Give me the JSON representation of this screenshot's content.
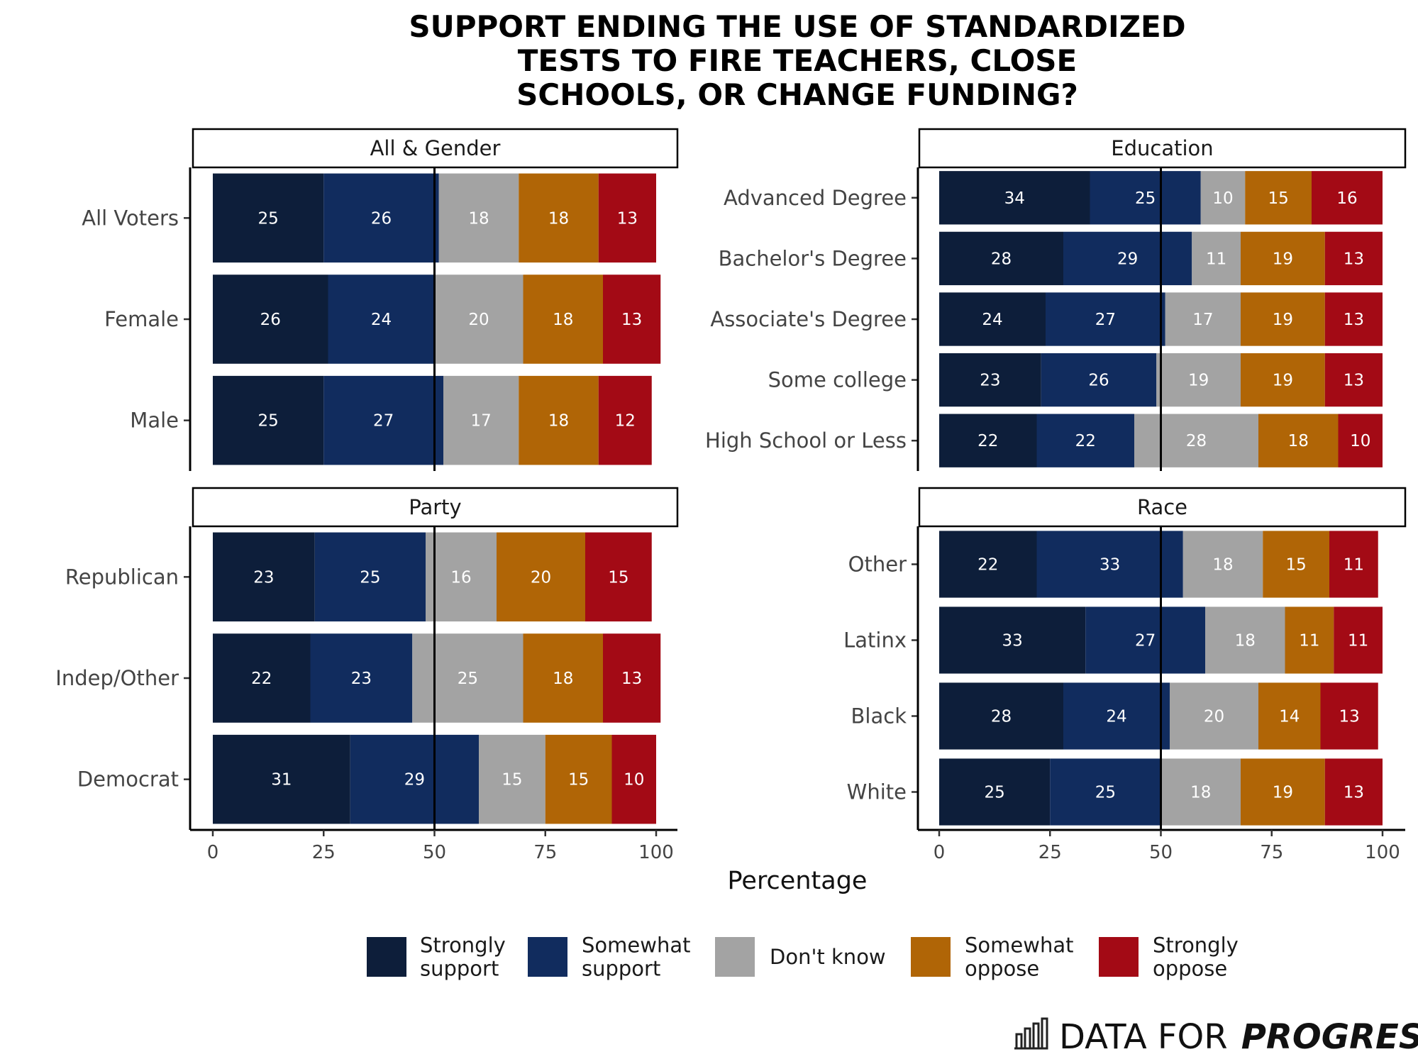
{
  "title_lines": [
    "SUPPORT ENDING THE USE OF STANDARDIZED",
    "TESTS TO FIRE TEACHERS, CLOSE",
    "SCHOOLS, OR CHANGE FUNDING?"
  ],
  "brand": {
    "light": "DATA FOR",
    "bold": "PROGRESS",
    "icon": "bar-chart-icon"
  },
  "chart_data": {
    "type": "bar",
    "orientation": "horizontal",
    "stacked": true,
    "xlabel": "Percentage",
    "xlim": [
      0,
      100
    ],
    "x_ticks": [
      0,
      25,
      50,
      75,
      100
    ],
    "reference_line": 50,
    "legend_placement": "bottom",
    "series": [
      {
        "name": "Strongly support",
        "lines": [
          "Strongly",
          "support"
        ],
        "color": "#0d1e3a"
      },
      {
        "name": "Somewhat support",
        "lines": [
          "Somewhat",
          "support"
        ],
        "color": "#112c5e"
      },
      {
        "name": "Don't know",
        "lines": [
          "Don't know"
        ],
        "color": "#a3a3a3"
      },
      {
        "name": "Somewhat oppose",
        "lines": [
          "Somewhat",
          "oppose"
        ],
        "color": "#b06506"
      },
      {
        "name": "Strongly oppose",
        "lines": [
          "Strongly",
          "oppose"
        ],
        "color": "#a30a15"
      }
    ],
    "panels": [
      {
        "title": "All & Gender",
        "categories": [
          "All Voters",
          "Female",
          "Male"
        ],
        "values": [
          [
            25,
            26,
            18,
            18,
            13
          ],
          [
            26,
            24,
            20,
            18,
            13
          ],
          [
            25,
            27,
            17,
            18,
            12
          ]
        ]
      },
      {
        "title": "Education",
        "categories": [
          "Advanced Degree",
          "Bachelor's Degree",
          "Associate's Degree",
          "Some college",
          "High School or Less"
        ],
        "values": [
          [
            34,
            25,
            10,
            15,
            16
          ],
          [
            28,
            29,
            11,
            19,
            13
          ],
          [
            24,
            27,
            17,
            19,
            13
          ],
          [
            23,
            26,
            19,
            19,
            13
          ],
          [
            22,
            22,
            28,
            18,
            10
          ]
        ]
      },
      {
        "title": "Party",
        "categories": [
          "Republican",
          "Indep/Other",
          "Democrat"
        ],
        "values": [
          [
            23,
            25,
            16,
            20,
            15
          ],
          [
            22,
            23,
            25,
            18,
            13
          ],
          [
            31,
            29,
            15,
            15,
            10
          ]
        ]
      },
      {
        "title": "Race",
        "categories": [
          "Other",
          "Latinx",
          "Black",
          "White"
        ],
        "values": [
          [
            22,
            33,
            18,
            15,
            11
          ],
          [
            33,
            27,
            18,
            11,
            11
          ],
          [
            28,
            24,
            20,
            14,
            13
          ],
          [
            25,
            25,
            18,
            19,
            13
          ]
        ]
      }
    ]
  }
}
